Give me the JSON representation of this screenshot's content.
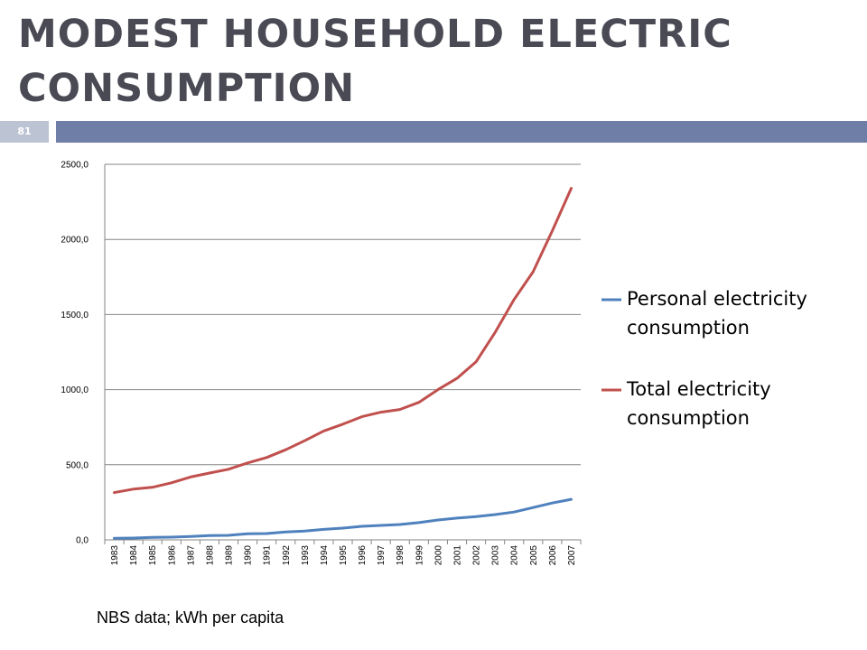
{
  "slide": {
    "title": "MODEST HOUSEHOLD ELECTRIC CONSUMPTION",
    "slide_number": "81",
    "source_note": "NBS data; kWh per capita"
  },
  "colors": {
    "title": "#4a4a55",
    "title_bar": "#6f7ea6",
    "slide_number_bg": "#bcc3d3",
    "gridline": "#868686"
  },
  "chart_data": {
    "type": "line",
    "categories": [
      "1983",
      "1984",
      "1985",
      "1986",
      "1987",
      "1988",
      "1989",
      "1990",
      "1991",
      "1992",
      "1993",
      "1994",
      "1995",
      "1996",
      "1997",
      "1998",
      "1999",
      "2000",
      "2001",
      "2002",
      "2003",
      "2004",
      "2005",
      "2006",
      "2007"
    ],
    "y_tick_labels": [
      "0,0",
      "500,0",
      "1000,0",
      "1500,0",
      "2000,0",
      "2500,0"
    ],
    "ylim": [
      0,
      2500
    ],
    "grid": true,
    "legend_position": "right",
    "series": [
      {
        "name": "Personal electricity consumption",
        "color": "#4f81bd",
        "values": [
          10,
          12,
          16,
          18,
          22,
          28,
          30,
          40,
          42,
          52,
          58,
          70,
          78,
          90,
          96,
          102,
          115,
          132,
          145,
          155,
          168,
          185,
          215,
          245,
          270
        ]
      },
      {
        "name": "Total electricity consumption",
        "color": "#c0504d",
        "values": [
          315,
          338,
          350,
          380,
          418,
          445,
          470,
          512,
          548,
          600,
          660,
          725,
          770,
          820,
          850,
          868,
          915,
          1000,
          1075,
          1185,
          1380,
          1600,
          1785,
          2055,
          2340
        ]
      }
    ]
  }
}
